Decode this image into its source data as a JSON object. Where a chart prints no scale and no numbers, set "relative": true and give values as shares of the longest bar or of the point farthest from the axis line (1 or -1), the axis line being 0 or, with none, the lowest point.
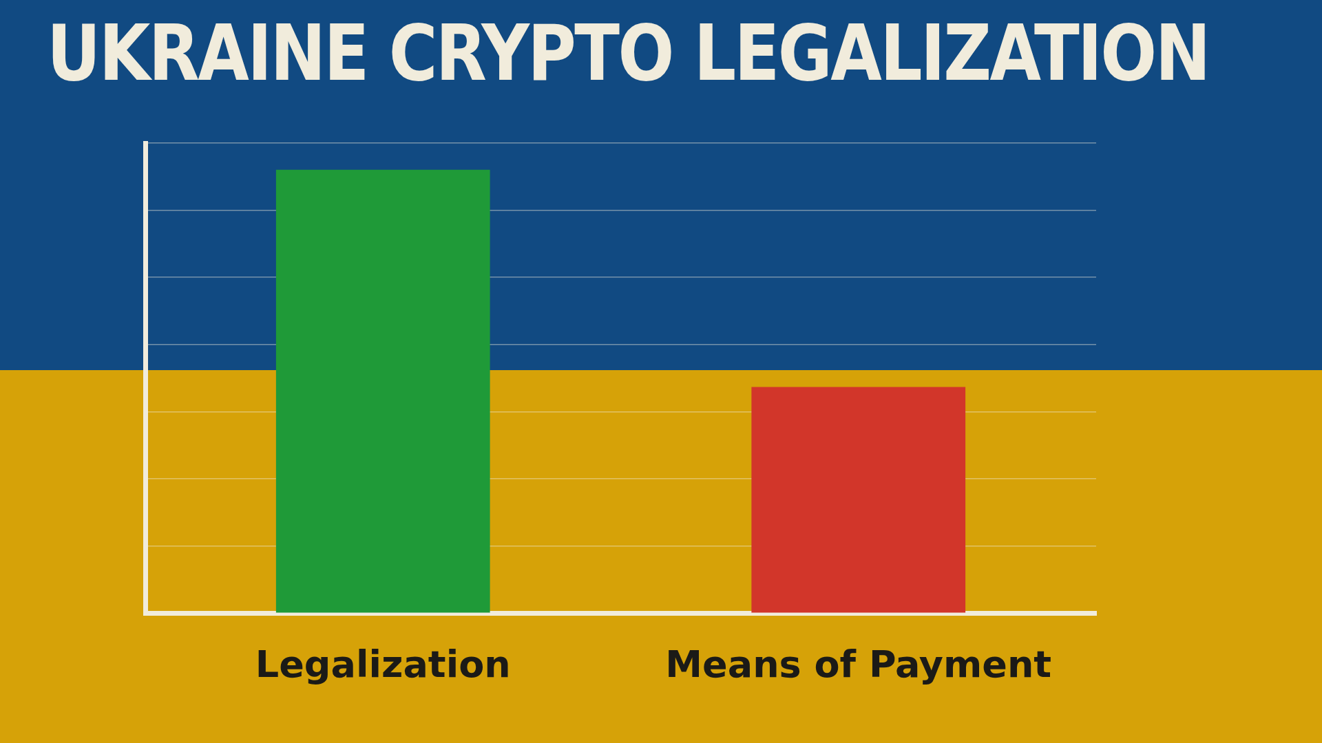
{
  "chart_data": {
    "type": "bar",
    "title": "UKRAINE CRYPTO LEGALIZATION",
    "categories": [
      "Legalization",
      "Means of Payment"
    ],
    "values": [
      1,
      0.51
    ],
    "colors": [
      "#1f9a38",
      "#d2362a"
    ],
    "relative": true,
    "grid": "y"
  }
}
